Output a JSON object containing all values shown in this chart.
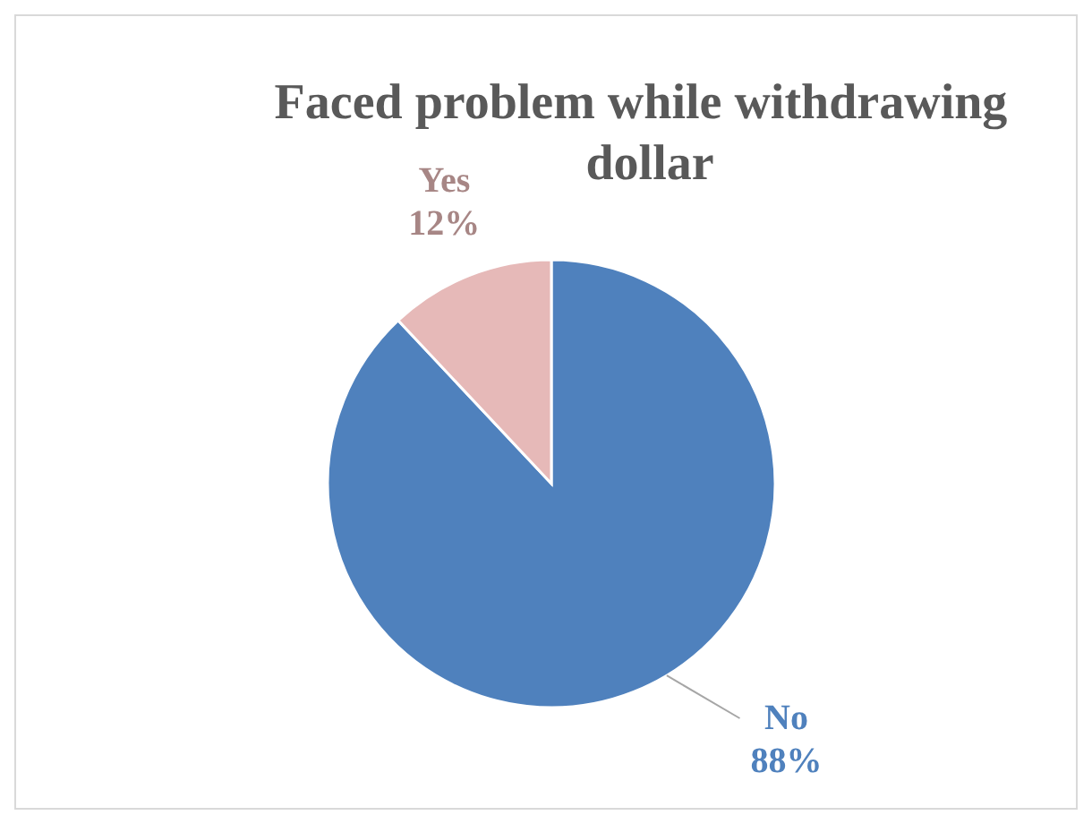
{
  "chart_data": {
    "type": "pie",
    "title": "Faced problem while withdrawing dollar",
    "categories": [
      "No",
      "Yes"
    ],
    "values": [
      88,
      12
    ],
    "value_labels": [
      "88%",
      "12%"
    ],
    "colors": [
      "#4f81bd",
      "#e6b9b8"
    ]
  }
}
